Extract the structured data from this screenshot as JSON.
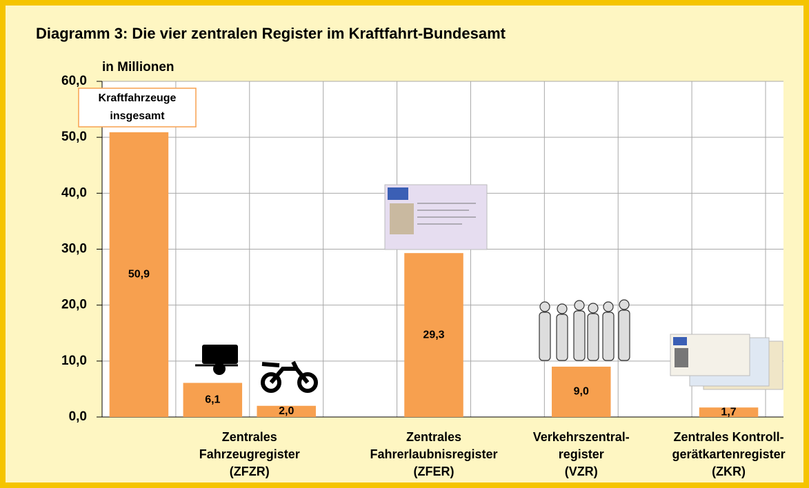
{
  "chart_data": {
    "type": "bar",
    "title": "Diagramm 3: Die vier zentralen Register im Kraftfahrt-Bundesamt",
    "y_axis_label": "in Millionen",
    "annotation": [
      "Kraftfahrzeuge",
      "insgesamt"
    ],
    "categories": [
      null,
      [
        "Zentrales",
        "Fahrzeugregister",
        "(ZFZR)"
      ],
      null,
      null,
      [
        "Zentrales",
        "Fahrerlaubnisregister",
        "(ZFER)"
      ],
      null,
      [
        "Verkehrszentral-",
        "register",
        "(VZR)"
      ],
      null,
      [
        "Zentrales Kontroll-",
        "gerätkartenregister",
        "(ZKR)"
      ]
    ],
    "values": [
      50.9,
      6.1,
      2.0,
      null,
      29.3,
      null,
      9.0,
      null,
      1.7
    ],
    "value_labels": [
      "50,9",
      "6,1",
      "2,0",
      null,
      "29,3",
      null,
      "9,0",
      null,
      "1,7"
    ],
    "color": "#f7a04f",
    "ylim": [
      0,
      60
    ],
    "yticks": [
      {
        "value": 0,
        "label": "0,0"
      },
      {
        "value": 10,
        "label": "10,0"
      },
      {
        "value": 20,
        "label": "20,0"
      },
      {
        "value": 30,
        "label": "30,0"
      },
      {
        "value": 40,
        "label": "40,0"
      },
      {
        "value": 50,
        "label": "50,0"
      },
      {
        "value": 60,
        "label": "60,0"
      }
    ],
    "grid": true
  }
}
